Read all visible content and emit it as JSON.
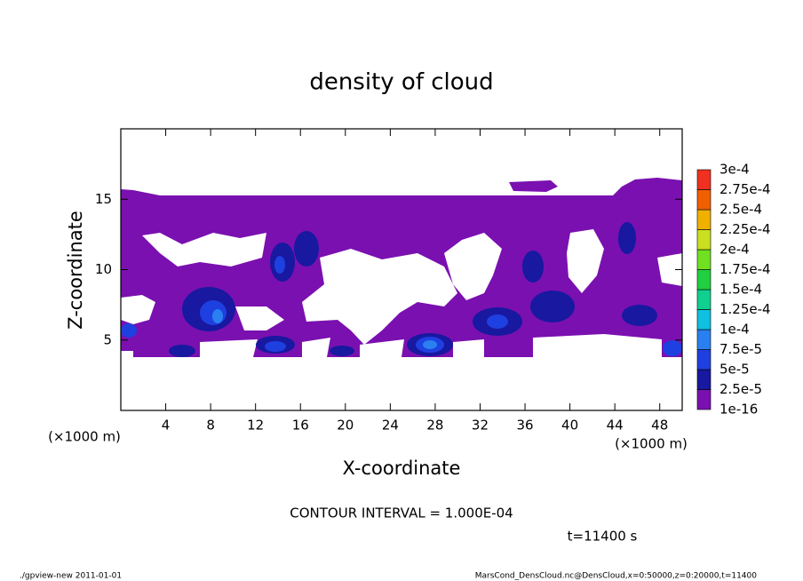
{
  "chart_data": {
    "type": "contour",
    "title": "density of cloud",
    "x_label": "X-coordinate",
    "y_label": "Z-coordinate",
    "x_unit_left": "(×1000 m)",
    "x_unit_right": "(×1000 m)",
    "xlim": [
      0,
      50
    ],
    "ylim": [
      0,
      20
    ],
    "xticks": [
      4,
      8,
      12,
      16,
      20,
      24,
      28,
      32,
      36,
      40,
      44,
      48
    ],
    "yticks": [
      5,
      10,
      15
    ],
    "colorbar": {
      "levels": [
        {
          "value": 1e-16,
          "label": "1e-16"
        },
        {
          "value": 2.5e-05,
          "label": "2.5e-5"
        },
        {
          "value": 5e-05,
          "label": "5e-5"
        },
        {
          "value": 7.5e-05,
          "label": "7.5e-5"
        },
        {
          "value": 0.0001,
          "label": "1e-4"
        },
        {
          "value": 0.000125,
          "label": "1.25e-4"
        },
        {
          "value": 0.00015,
          "label": "1.5e-4"
        },
        {
          "value": 0.000175,
          "label": "1.75e-4"
        },
        {
          "value": 0.0002,
          "label": "2e-4"
        },
        {
          "value": 0.000225,
          "label": "2.25e-4"
        },
        {
          "value": 0.00025,
          "label": "2.5e-4"
        },
        {
          "value": 0.000275,
          "label": "2.75e-4"
        },
        {
          "value": 0.0003,
          "label": "3e-4"
        }
      ],
      "colors": [
        "#7a10b0",
        "#1818a0",
        "#1f40e0",
        "#2a80f0",
        "#10c0e0",
        "#10d090",
        "#20d040",
        "#70e020",
        "#c8e020",
        "#f0b000",
        "#f06000",
        "#f03020"
      ]
    },
    "contour_interval": "CONTOUR INTERVAL = 1.000E-04",
    "time": "t=11400 s",
    "footer_left": "./gpview-new  2011-01-01",
    "footer_right": "MarsCond_DensCloud.nc@DensCloud,x=0:50000,z=0:20000,t=11400"
  }
}
